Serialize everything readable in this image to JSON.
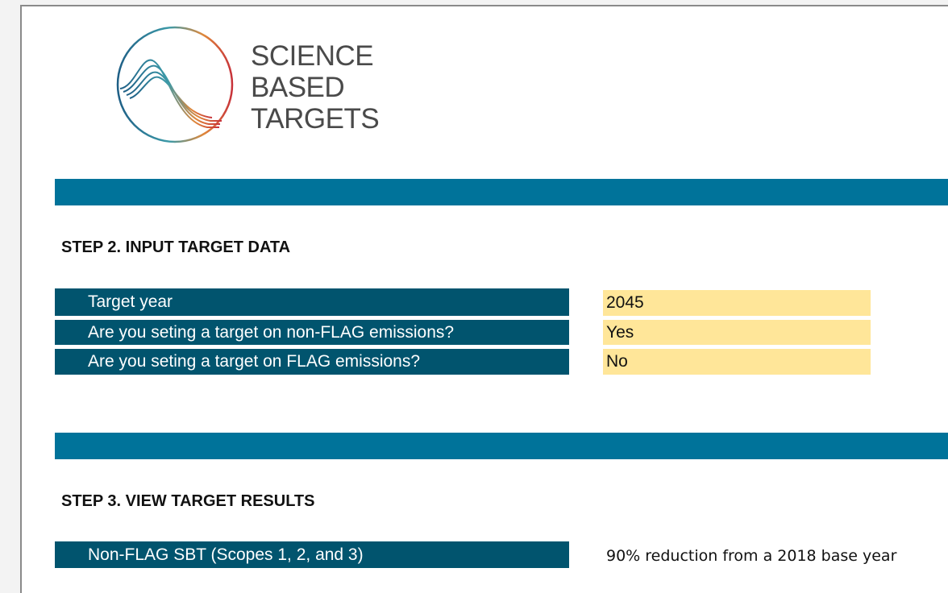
{
  "logo": {
    "lines": [
      "SCIENCE",
      "BASED",
      "TARGETS"
    ]
  },
  "step2": {
    "heading": "STEP 2. INPUT TARGET DATA",
    "rows": [
      {
        "label": "Target year",
        "value": "2045"
      },
      {
        "label": "Are you seting a target on non-FLAG emissions?",
        "value": "Yes"
      },
      {
        "label": "Are you seting a target on FLAG emissions?",
        "value": "No"
      }
    ]
  },
  "step3": {
    "heading": "STEP 3. VIEW TARGET RESULTS",
    "rows": [
      {
        "label": "Non-FLAG SBT (Scopes 1, 2, and 3)",
        "value": "90% reduction from a 2018 base year"
      }
    ]
  }
}
